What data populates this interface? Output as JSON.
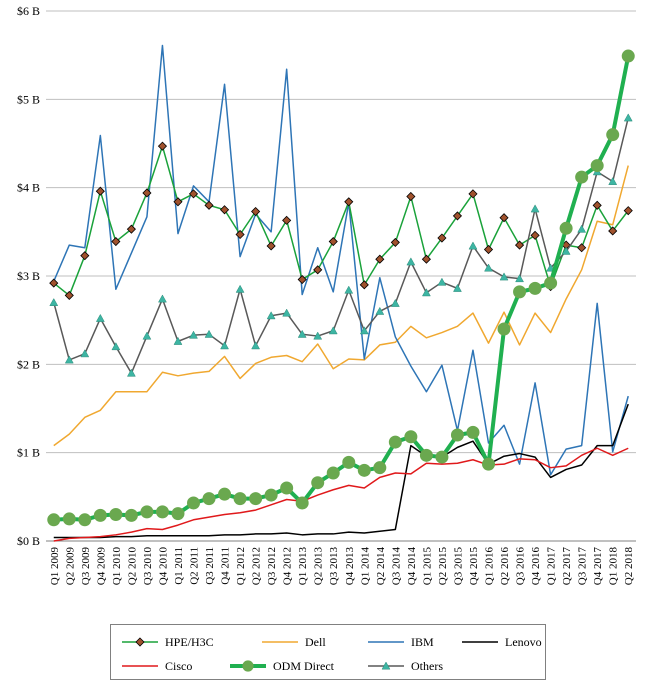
{
  "chart_data": {
    "type": "line",
    "x": [
      "Q1 2009",
      "Q2 2009",
      "Q3 2009",
      "Q4 2009",
      "Q1 2010",
      "Q2 2010",
      "Q3 2010",
      "Q4 2010",
      "Q1 2011",
      "Q2 2011",
      "Q3 2011",
      "Q4 2011",
      "Q1 2012",
      "Q2 2012",
      "Q3 2012",
      "Q4 2012",
      "Q1 2013",
      "Q2 2013",
      "Q3 2013",
      "Q4 2013",
      "Q1 2014",
      "Q2 2014",
      "Q3 2014",
      "Q4 2014",
      "Q1 2015",
      "Q2 2015",
      "Q3 2015",
      "Q4 2015",
      "Q1 2016",
      "Q2 2016",
      "Q3 2016",
      "Q4 2016",
      "Q1 2017",
      "Q2 2017",
      "Q3 2017",
      "Q4 2017",
      "Q1 2018",
      "Q2 2018"
    ],
    "ylim": [
      0,
      6
    ],
    "yticks": [
      0,
      1,
      2,
      3,
      4,
      5,
      6
    ],
    "ytick_labels": [
      "$0 B",
      "$1 B",
      "$2 B",
      "$3 B",
      "$4 B",
      "$5 B",
      "$6 B"
    ],
    "grid": true,
    "legend_position": "bottom",
    "series": [
      {
        "name": "HPE/H3C",
        "color": "#1aa23a",
        "marker": "diamond",
        "marker_color": "#a0522d",
        "width": 1.5,
        "values": [
          2.92,
          2.78,
          3.23,
          3.96,
          3.39,
          3.53,
          3.94,
          4.47,
          3.84,
          3.93,
          3.8,
          3.75,
          3.47,
          3.73,
          3.34,
          3.63,
          2.96,
          3.07,
          3.39,
          3.84,
          2.9,
          3.19,
          3.38,
          3.9,
          3.19,
          3.43,
          3.68,
          3.93,
          3.3,
          3.66,
          3.35,
          3.46,
          2.88,
          3.35,
          3.32,
          3.8,
          3.51,
          3.74
        ]
      },
      {
        "name": "Dell",
        "color": "#f0a830",
        "marker": "none",
        "width": 1.5,
        "values": [
          1.08,
          1.21,
          1.4,
          1.48,
          1.69,
          1.69,
          1.69,
          1.91,
          1.87,
          1.9,
          1.92,
          2.09,
          1.84,
          2.01,
          2.08,
          2.1,
          2.03,
          2.23,
          1.95,
          2.06,
          2.05,
          2.22,
          2.25,
          2.43,
          2.3,
          2.36,
          2.43,
          2.58,
          2.24,
          2.59,
          2.22,
          2.58,
          2.36,
          2.74,
          3.07,
          3.62,
          3.58,
          4.25
        ]
      },
      {
        "name": "IBM",
        "color": "#2e75b6",
        "marker": "none",
        "width": 1.5,
        "values": [
          2.94,
          3.35,
          3.32,
          4.59,
          2.85,
          3.26,
          3.67,
          5.61,
          3.48,
          4.02,
          3.84,
          5.17,
          3.22,
          3.7,
          3.5,
          5.34,
          2.79,
          3.32,
          2.82,
          3.83,
          2.06,
          2.98,
          2.31,
          1.98,
          1.69,
          1.99,
          1.25,
          2.16,
          1.11,
          1.31,
          0.87,
          1.79,
          0.75,
          1.04,
          1.08,
          2.69,
          1.01,
          1.64
        ]
      },
      {
        "name": "Lenovo",
        "color": "#000000",
        "marker": "none",
        "width": 1.5,
        "values": [
          0.04,
          0.04,
          0.04,
          0.04,
          0.05,
          0.05,
          0.06,
          0.06,
          0.06,
          0.06,
          0.06,
          0.07,
          0.07,
          0.08,
          0.08,
          0.09,
          0.07,
          0.08,
          0.08,
          0.1,
          0.09,
          0.11,
          0.13,
          1.08,
          0.96,
          0.95,
          1.06,
          1.13,
          0.87,
          0.96,
          0.99,
          0.95,
          0.72,
          0.81,
          0.86,
          1.08,
          1.08,
          1.55
        ]
      },
      {
        "name": "Cisco",
        "color": "#e0191b",
        "marker": "none",
        "width": 1.5,
        "values": [
          0.0,
          0.03,
          0.04,
          0.05,
          0.07,
          0.1,
          0.14,
          0.13,
          0.18,
          0.24,
          0.27,
          0.3,
          0.32,
          0.35,
          0.41,
          0.47,
          0.45,
          0.52,
          0.58,
          0.63,
          0.6,
          0.72,
          0.77,
          0.76,
          0.88,
          0.87,
          0.88,
          0.92,
          0.86,
          0.87,
          0.93,
          0.92,
          0.83,
          0.85,
          0.97,
          1.05,
          0.97,
          1.05
        ]
      },
      {
        "name": "ODM Direct",
        "color": "#20b050",
        "marker": "circle",
        "marker_color": "#6aa84f",
        "width": 4,
        "values": [
          0.24,
          0.25,
          0.24,
          0.29,
          0.3,
          0.29,
          0.33,
          0.33,
          0.31,
          0.43,
          0.48,
          0.53,
          0.48,
          0.48,
          0.52,
          0.6,
          0.43,
          0.66,
          0.77,
          0.89,
          0.8,
          0.83,
          1.12,
          1.18,
          0.97,
          0.95,
          1.2,
          1.23,
          0.87,
          2.4,
          2.82,
          2.86,
          2.92,
          3.54,
          4.12,
          4.25,
          4.6,
          5.49
        ]
      },
      {
        "name": "Others",
        "color": "#595959",
        "marker": "triangle",
        "marker_color": "#3db5a3",
        "width": 1.5,
        "values": [
          2.7,
          2.05,
          2.12,
          2.52,
          2.2,
          1.9,
          2.32,
          2.74,
          2.26,
          2.33,
          2.34,
          2.21,
          2.85,
          2.21,
          2.55,
          2.58,
          2.34,
          2.32,
          2.38,
          2.84,
          2.38,
          2.6,
          2.69,
          3.16,
          2.81,
          2.93,
          2.86,
          3.34,
          3.09,
          2.99,
          2.97,
          3.76,
          3.09,
          3.28,
          3.53,
          4.18,
          4.07,
          4.79
        ]
      }
    ]
  }
}
